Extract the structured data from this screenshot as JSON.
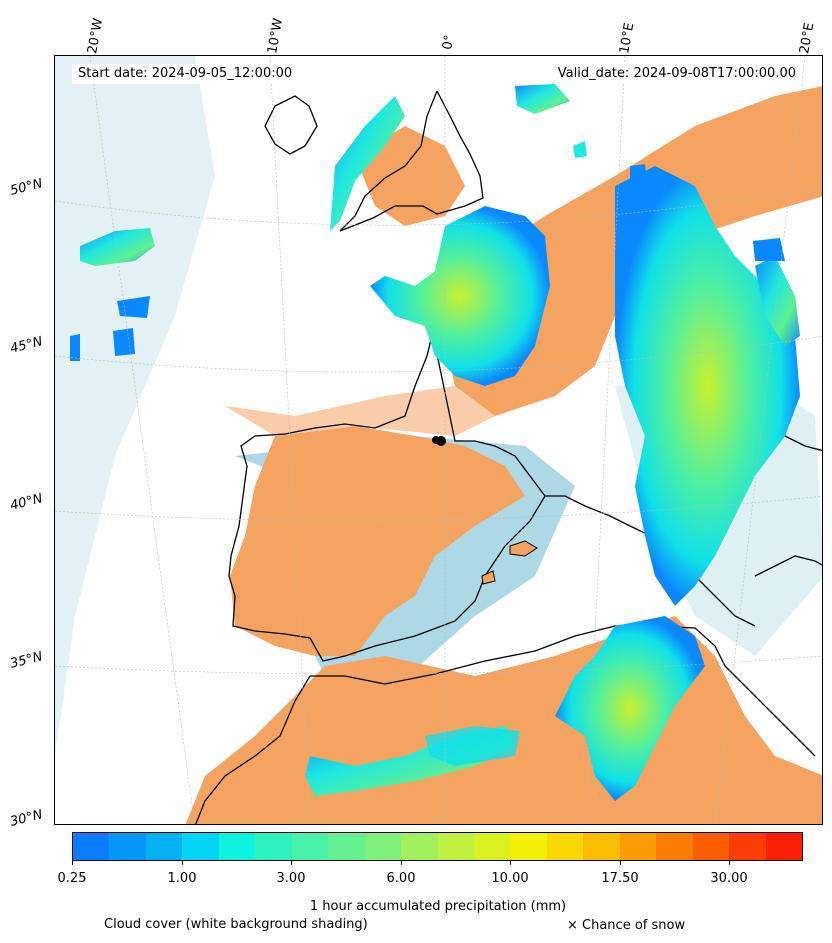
{
  "map": {
    "start_date": "Start date: 2024-09-05_12:00:00",
    "valid_date": "Valid_date: 2024-09-08T17:00:00.00",
    "lon_labels": [
      "20°W",
      "10°W",
      "0°",
      "10°E",
      "20°E"
    ],
    "lat_labels": [
      "50°N",
      "45°N",
      "40°N",
      "35°N",
      "30°N"
    ],
    "colors": {
      "land_dry": "#f4a460",
      "sea_cloud": "#add8e6",
      "coast": "#000000"
    }
  },
  "legend": {
    "title": "1 hour accumulated precipitation (mm)",
    "ticks": [
      "0.25",
      "1.00",
      "3.00",
      "6.00",
      "10.00",
      "17.50",
      "30.00"
    ],
    "colors": [
      "#0a7cff",
      "#0698f9",
      "#04b2f4",
      "#04d4f4",
      "#10f2e0",
      "#2cf2c0",
      "#48f2a8",
      "#64f290",
      "#80f078",
      "#a0f05c",
      "#c0f040",
      "#dcf020",
      "#f4f004",
      "#f8d800",
      "#fcbc00",
      "#fc9c00",
      "#fc7c00",
      "#fc5c00",
      "#fc3c00",
      "#fc2000"
    ],
    "cloud_note": "Cloud cover (white background shading)",
    "snow_note": "× Chance of snow"
  }
}
